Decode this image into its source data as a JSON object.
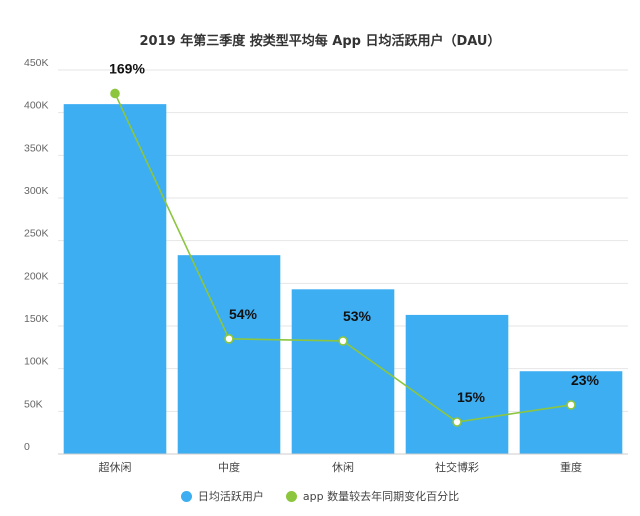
{
  "chart_data": {
    "type": "bar",
    "title": "2019 年第三季度 按类型平均每 App 日均活跃用户（DAU）",
    "categories": [
      "超休闲",
      "中度",
      "休闲",
      "社交博彩",
      "重度"
    ],
    "series": [
      {
        "name": "日均活跃用户",
        "type": "bar",
        "values": [
          410000,
          233000,
          193000,
          163000,
          97000
        ],
        "color": "#3daef2"
      },
      {
        "name": "app 数量较去年同期变化百分比",
        "type": "line",
        "values": [
          169,
          54,
          53,
          15,
          23
        ],
        "labels": [
          "169%",
          "54%",
          "53%",
          "15%",
          "23%"
        ],
        "color": "#8cc63f"
      }
    ],
    "y_ticks": [
      {
        "value": 0,
        "label": "0"
      },
      {
        "value": 50000,
        "label": "50K"
      },
      {
        "value": 100000,
        "label": "100K"
      },
      {
        "value": 150000,
        "label": "150K"
      },
      {
        "value": 200000,
        "label": "200K"
      },
      {
        "value": 250000,
        "label": "250K"
      },
      {
        "value": 300000,
        "label": "300K"
      },
      {
        "value": 350000,
        "label": "350K"
      },
      {
        "value": 400000,
        "label": "400K"
      },
      {
        "value": 450000,
        "label": "450K"
      }
    ],
    "ylim": [
      0,
      450000
    ],
    "y2lim": [
      0,
      180
    ],
    "grid": true,
    "legend": "bottom-center",
    "xlabel": "",
    "ylabel": ""
  }
}
